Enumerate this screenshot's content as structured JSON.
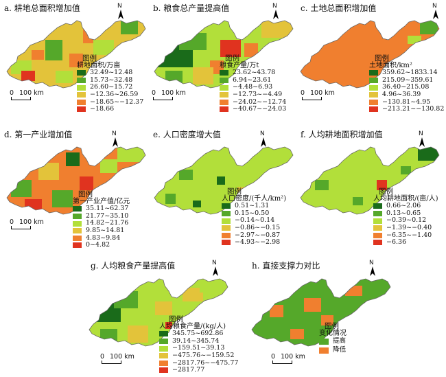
{
  "north_label": "N",
  "legend_heading": "图例",
  "scale": {
    "zero": "0",
    "text": "100 km"
  },
  "panels": [
    {
      "id": "a",
      "title": "a. 耕地总面积增加值",
      "legend_title": "耕地面积/万亩",
      "classes": [
        {
          "label": "32.49~12.48",
          "color": "#1a6b1a"
        },
        {
          "label": "15.73~32.48",
          "color": "#55a82a"
        },
        {
          "label": "26.60~15.72",
          "color": "#b2df3a"
        },
        {
          "label": "−12.36~26.59",
          "color": "#e3c33a"
        },
        {
          "label": "−18.65~−12.37",
          "color": "#f07f2f"
        },
        {
          "label": "−18.66",
          "color": "#e0331f"
        }
      ]
    },
    {
      "id": "b",
      "title": "b. 粮食总产量提高值",
      "legend_title": "粮食产量/万t",
      "classes": [
        {
          "label": "23.62~43.78",
          "color": "#1a6b1a"
        },
        {
          "label": "6.94~23.61",
          "color": "#55a82a"
        },
        {
          "label": "−4.48~6.93",
          "color": "#b2df3a"
        },
        {
          "label": "−12.73~−4.49",
          "color": "#e3c33a"
        },
        {
          "label": "−24.02~−12.74",
          "color": "#f07f2f"
        },
        {
          "label": "−40.67~−24.03",
          "color": "#e0331f"
        }
      ]
    },
    {
      "id": "c",
      "title": "c. 土地总面积增加值",
      "legend_title": "土地面积/km²",
      "classes": [
        {
          "label": "359.62~1833.14",
          "color": "#1a6b1a"
        },
        {
          "label": "215.09~359.61",
          "color": "#55a82a"
        },
        {
          "label": "36.40~215.08",
          "color": "#b2df3a"
        },
        {
          "label": "4.96~36.39",
          "color": "#e3c33a"
        },
        {
          "label": "−130.81~4.95",
          "color": "#f07f2f"
        },
        {
          "label": "−213.21~−130.82",
          "color": "#e0331f"
        }
      ]
    },
    {
      "id": "d",
      "title": "d. 第一产业增加值",
      "legend_title": "第一产业产值/亿元",
      "classes": [
        {
          "label": "35.11~62.37",
          "color": "#1a6b1a"
        },
        {
          "label": "21.77~35.10",
          "color": "#55a82a"
        },
        {
          "label": "14.82~21.76",
          "color": "#b2df3a"
        },
        {
          "label": "9.85~14.81",
          "color": "#e3c33a"
        },
        {
          "label": "4.83~9.84",
          "color": "#f07f2f"
        },
        {
          "label": "0~4.82",
          "color": "#e0331f"
        }
      ]
    },
    {
      "id": "e",
      "title": "e. 人口密度增大值",
      "legend_title": "人口密度/(千人/km²)",
      "classes": [
        {
          "label": "0.51~1.31",
          "color": "#1a6b1a"
        },
        {
          "label": "0.15~0.50",
          "color": "#55a82a"
        },
        {
          "label": "−0.14~0.14",
          "color": "#b2df3a"
        },
        {
          "label": "−0.86~−0.15",
          "color": "#e3c33a"
        },
        {
          "label": "−2.97~−0.87",
          "color": "#f07f2f"
        },
        {
          "label": "−4.93~−2.98",
          "color": "#e0331f"
        }
      ]
    },
    {
      "id": "f",
      "title": "f. 人均耕地面积增加值",
      "legend_title": "人均耕地面积/(亩/人)",
      "classes": [
        {
          "label": "0.66~2.06",
          "color": "#1a6b1a"
        },
        {
          "label": "0.13~0.65",
          "color": "#55a82a"
        },
        {
          "label": "−0.39~0.12",
          "color": "#b2df3a"
        },
        {
          "label": "−1.39~−0.40",
          "color": "#e3c33a"
        },
        {
          "label": "−6.35~−1.40",
          "color": "#f07f2f"
        },
        {
          "label": "−6.36",
          "color": "#e0331f"
        }
      ]
    },
    {
      "id": "g",
      "title": "g. 人均粮食产量提高值",
      "legend_title": "人均粮食产量/(kg/人)",
      "classes": [
        {
          "label": "345.75~692.86",
          "color": "#1a6b1a"
        },
        {
          "label": "39.14~345.74",
          "color": "#55a82a"
        },
        {
          "label": "−159.51~39.13",
          "color": "#b2df3a"
        },
        {
          "label": "−475.76~−159.52",
          "color": "#e3c33a"
        },
        {
          "label": "−2817.76~−475.77",
          "color": "#f07f2f"
        },
        {
          "label": "−2817.77",
          "color": "#e0331f"
        }
      ]
    },
    {
      "id": "h",
      "title": "h. 直接支撑力对比",
      "legend_title": "变化情况",
      "classes": [
        {
          "label": "提高",
          "color": "#55a82a"
        },
        {
          "label": "降低",
          "color": "#f07f2f"
        }
      ]
    }
  ]
}
